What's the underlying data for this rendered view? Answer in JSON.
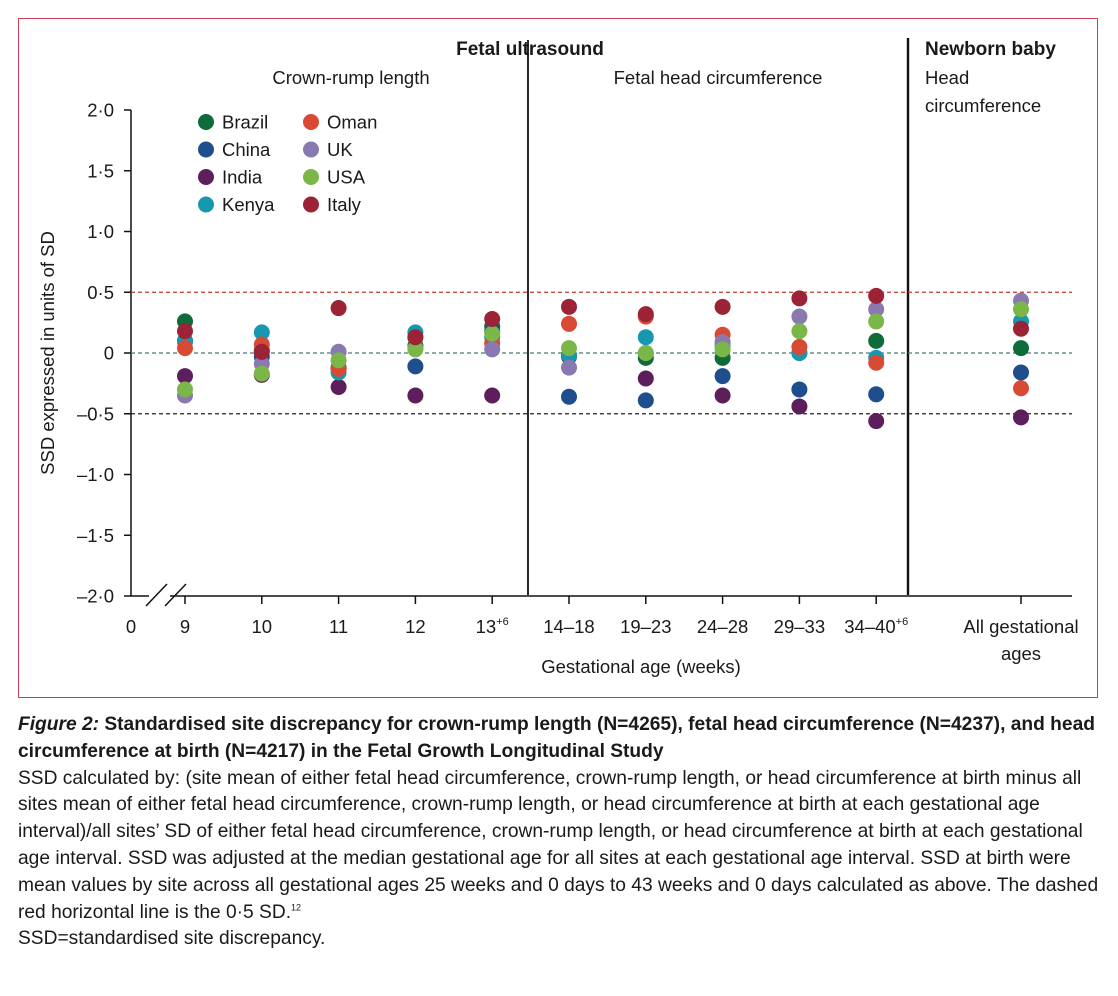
{
  "chart_data": {
    "type": "scatter",
    "sections": {
      "fetal_ultrasound": "Fetal ultrasound",
      "newborn": "Newborn baby",
      "crl": "Crown-rump length",
      "fhc": "Fetal head circumference",
      "hc_line1": "Head",
      "hc_line2": "circumference"
    },
    "ylabel": "SSD expressed in units of SD",
    "xlabel": "Gestational age (weeks)",
    "ylim": [
      -2.0,
      2.0
    ],
    "yticks": [
      {
        "v": 2.0,
        "label": "2·0"
      },
      {
        "v": 1.5,
        "label": "1·5"
      },
      {
        "v": 1.0,
        "label": "1·0"
      },
      {
        "v": 0.5,
        "label": "0·5"
      },
      {
        "v": 0,
        "label": "0"
      },
      {
        "v": -0.5,
        "label": "–0·5"
      },
      {
        "v": -1.0,
        "label": "–1·0"
      },
      {
        "v": -1.5,
        "label": "–1·5"
      },
      {
        "v": -2.0,
        "label": "–2·0"
      }
    ],
    "x_origin_label": "0",
    "categories": [
      {
        "label": "9",
        "sup": ""
      },
      {
        "label": "10",
        "sup": ""
      },
      {
        "label": "11",
        "sup": ""
      },
      {
        "label": "12",
        "sup": ""
      },
      {
        "label": "13",
        "sup": "+6"
      },
      {
        "label": "14–18",
        "sup": ""
      },
      {
        "label": "19–23",
        "sup": ""
      },
      {
        "label": "24–28",
        "sup": ""
      },
      {
        "label": "29–33",
        "sup": ""
      },
      {
        "label": "34–40",
        "sup": "+6"
      },
      {
        "label": "All gestational",
        "label2": "ages",
        "sup": ""
      }
    ],
    "reference_lines": [
      {
        "value": 0.5,
        "color": "#c0392b",
        "style": "dashed"
      },
      {
        "value": 0,
        "color": "#4a7a78",
        "style": "dashed"
      },
      {
        "value": -0.5,
        "color": "#222222",
        "style": "dashed"
      }
    ],
    "legend_position": "top-left",
    "series": [
      {
        "name": "Brazil",
        "color": "#0e6b3a",
        "values": [
          0.26,
          0.02,
          -0.12,
          0.06,
          0.22,
          -0.02,
          -0.04,
          -0.04,
          0.0,
          0.1,
          0.04
        ]
      },
      {
        "name": "China",
        "color": "#1f4e8c",
        "values": [
          0.1,
          -0.03,
          -0.13,
          -0.11,
          0.18,
          -0.36,
          -0.39,
          -0.19,
          -0.3,
          -0.34,
          -0.16
        ]
      },
      {
        "name": "India",
        "color": "#5c1f5c",
        "values": [
          -0.19,
          -0.18,
          -0.28,
          -0.35,
          -0.35,
          -0.03,
          -0.21,
          -0.35,
          -0.44,
          -0.56,
          -0.53
        ]
      },
      {
        "name": "Kenya",
        "color": "#1698b0",
        "values": [
          0.09,
          0.17,
          -0.16,
          0.17,
          0.13,
          -0.02,
          0.13,
          0.06,
          0.0,
          -0.04,
          0.26
        ]
      },
      {
        "name": "Oman",
        "color": "#d94a35",
        "values": [
          0.04,
          0.07,
          -0.13,
          0.13,
          0.08,
          0.24,
          0.3,
          0.15,
          0.05,
          -0.08,
          -0.29
        ]
      },
      {
        "name": "UK",
        "color": "#8a78b0",
        "values": [
          -0.35,
          -0.09,
          0.01,
          0.04,
          0.03,
          -0.12,
          0.0,
          0.09,
          0.3,
          0.36,
          0.43
        ]
      },
      {
        "name": "USA",
        "color": "#7ab648",
        "values": [
          -0.3,
          -0.17,
          -0.06,
          0.03,
          0.16,
          0.04,
          0.0,
          0.03,
          0.18,
          0.26,
          0.36
        ]
      },
      {
        "name": "Italy",
        "color": "#9b2335",
        "values": [
          0.18,
          0.01,
          0.37,
          0.13,
          0.28,
          0.38,
          0.32,
          0.38,
          0.45,
          0.47,
          0.2
        ]
      }
    ]
  },
  "caption": {
    "label": "Figure 2:",
    "title": " Standardised site discrepancy for crown-rump length (N=4265), fetal head circumference (N=4237), and head circumference at birth (N=4217) in the Fetal Growth Longitudinal Study",
    "body": "SSD calculated by: (site mean of either fetal head circumference, crown-rump length, or head circumference at birth minus all sites mean of either fetal head circumference, crown-rump length, or head circumference at birth at each gestational age interval)/all sites’ SD of either fetal head circumference, crown-rump length, or head circumference at birth at each gestational age interval. SSD was adjusted at the median gestational age for all sites at each gestational age interval. SSD at birth were mean values by site across all gestational ages 25 weeks and 0 days to 43 weeks and 0 days calculated as above. The dashed red horizontal line is the 0·5 SD.",
    "ref": "12",
    "abbrev": "SSD=standardised site discrepancy."
  }
}
